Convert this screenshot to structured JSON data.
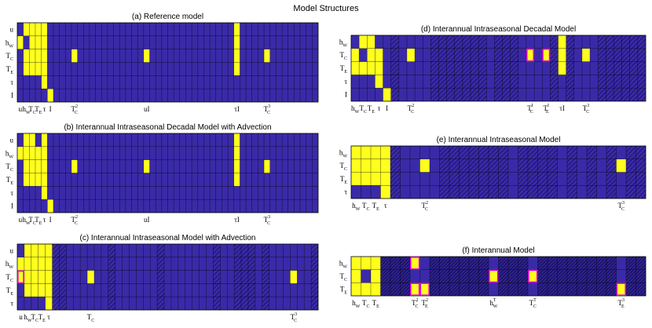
{
  "figure_title": "Model Structures",
  "colors": {
    "background_cell": "#3a2aa8",
    "active_cell": "#ffff1e",
    "grid_line": "#000000",
    "highlight_border": "#e000e0",
    "hatch": "#1a1060"
  },
  "chart_data": [
    {
      "type": "heatmap",
      "id": "a",
      "title": "(a) Reference model",
      "n_cols": 50,
      "rows": [
        {
          "label": "u",
          "sub": ""
        },
        {
          "label": "h",
          "sub": "W"
        },
        {
          "label": "T",
          "sub": "C"
        },
        {
          "label": "T",
          "sub": "E"
        },
        {
          "label": "τ",
          "sub": ""
        },
        {
          "label": "I",
          "sub": ""
        }
      ],
      "col_labels": [
        {
          "col": 0,
          "text": "u",
          "sub": "",
          "sup": ""
        },
        {
          "col": 1,
          "text": "h",
          "sub": "W",
          "sup": ""
        },
        {
          "col": 2,
          "text": "T",
          "sub": "C",
          "sup": ""
        },
        {
          "col": 3,
          "text": "T",
          "sub": "E",
          "sup": ""
        },
        {
          "col": 4,
          "text": "τ",
          "sub": "",
          "sup": ""
        },
        {
          "col": 5,
          "text": "I",
          "sub": "",
          "sup": ""
        },
        {
          "col": 9,
          "text": "T",
          "sub": "C",
          "sup": "2"
        },
        {
          "col": 21,
          "text": "uI",
          "sub": "",
          "sup": ""
        },
        {
          "col": 36,
          "text": "τI",
          "sub": "",
          "sup": ""
        },
        {
          "col": 41,
          "text": "T",
          "sub": "C",
          "sup": "3"
        }
      ],
      "active": [
        [
          1,
          0
        ],
        [
          2,
          0
        ],
        [
          3,
          0
        ],
        [
          4,
          0
        ],
        [
          0,
          1
        ],
        [
          2,
          1
        ],
        [
          3,
          1
        ],
        [
          4,
          1
        ],
        [
          1,
          2
        ],
        [
          2,
          2
        ],
        [
          3,
          2
        ],
        [
          4,
          2
        ],
        [
          1,
          3
        ],
        [
          2,
          3
        ],
        [
          3,
          3
        ],
        [
          4,
          3
        ],
        [
          4,
          4
        ],
        [
          5,
          5
        ],
        [
          9,
          2
        ],
        [
          21,
          2
        ],
        [
          36,
          0
        ],
        [
          36,
          1
        ],
        [
          36,
          2
        ],
        [
          36,
          3
        ],
        [
          41,
          2
        ]
      ],
      "highlight": [],
      "hatched": [],
      "hatched_dark": []
    },
    {
      "type": "heatmap",
      "id": "b",
      "title": "(b) Interannual Intraseasonal Decadal Model with Advection",
      "n_cols": 50,
      "rows": [
        {
          "label": "u",
          "sub": ""
        },
        {
          "label": "h",
          "sub": "W"
        },
        {
          "label": "T",
          "sub": "C"
        },
        {
          "label": "T",
          "sub": "E"
        },
        {
          "label": "τ",
          "sub": ""
        },
        {
          "label": "I",
          "sub": ""
        }
      ],
      "col_labels": [
        {
          "col": 0,
          "text": "u",
          "sub": "",
          "sup": ""
        },
        {
          "col": 1,
          "text": "h",
          "sub": "W",
          "sup": ""
        },
        {
          "col": 2,
          "text": "T",
          "sub": "C",
          "sup": ""
        },
        {
          "col": 3,
          "text": "T",
          "sub": "E",
          "sup": ""
        },
        {
          "col": 4,
          "text": "τ",
          "sub": "",
          "sup": ""
        },
        {
          "col": 5,
          "text": "I",
          "sub": "",
          "sup": ""
        },
        {
          "col": 9,
          "text": "T",
          "sub": "C",
          "sup": "2"
        },
        {
          "col": 21,
          "text": "uI",
          "sub": "",
          "sup": ""
        },
        {
          "col": 36,
          "text": "τI",
          "sub": "",
          "sup": ""
        },
        {
          "col": 41,
          "text": "T",
          "sub": "C",
          "sup": "3"
        }
      ],
      "active": [
        [
          1,
          0
        ],
        [
          2,
          0
        ],
        [
          4,
          0
        ],
        [
          0,
          1
        ],
        [
          1,
          1
        ],
        [
          2,
          1
        ],
        [
          3,
          1
        ],
        [
          4,
          1
        ],
        [
          1,
          2
        ],
        [
          2,
          2
        ],
        [
          3,
          2
        ],
        [
          4,
          2
        ],
        [
          1,
          3
        ],
        [
          2,
          3
        ],
        [
          3,
          3
        ],
        [
          4,
          3
        ],
        [
          4,
          4
        ],
        [
          5,
          5
        ],
        [
          9,
          2
        ],
        [
          21,
          2
        ],
        [
          36,
          0
        ],
        [
          36,
          1
        ],
        [
          36,
          2
        ],
        [
          36,
          3
        ],
        [
          41,
          2
        ]
      ],
      "highlight": [],
      "hatched": [],
      "hatched_dark": []
    },
    {
      "type": "heatmap",
      "id": "c",
      "title": "(c) Interannual Intraseasonal Model with Advection",
      "n_cols": 43,
      "rows": [
        {
          "label": "u",
          "sub": ""
        },
        {
          "label": "h",
          "sub": "W"
        },
        {
          "label": "T",
          "sub": "C"
        },
        {
          "label": "T",
          "sub": "E"
        },
        {
          "label": "τ",
          "sub": ""
        }
      ],
      "col_labels": [
        {
          "col": 0,
          "text": "u",
          "sub": "",
          "sup": ""
        },
        {
          "col": 1,
          "text": "h",
          "sub": "W",
          "sup": ""
        },
        {
          "col": 2,
          "text": "T",
          "sub": "C",
          "sup": ""
        },
        {
          "col": 3,
          "text": "T",
          "sub": "E",
          "sup": ""
        },
        {
          "col": 4,
          "text": "τ",
          "sub": "",
          "sup": ""
        },
        {
          "col": 10,
          "text": "T",
          "sub": "C",
          "sup": ""
        },
        {
          "col": 39,
          "text": "T",
          "sub": "C",
          "sup": "3"
        }
      ],
      "active": [
        [
          1,
          0
        ],
        [
          2,
          0
        ],
        [
          3,
          0
        ],
        [
          4,
          0
        ],
        [
          0,
          1
        ],
        [
          1,
          1
        ],
        [
          2,
          1
        ],
        [
          3,
          1
        ],
        [
          4,
          1
        ],
        [
          0,
          2
        ],
        [
          1,
          2
        ],
        [
          2,
          2
        ],
        [
          3,
          2
        ],
        [
          4,
          2
        ],
        [
          1,
          3
        ],
        [
          2,
          3
        ],
        [
          3,
          3
        ],
        [
          4,
          3
        ],
        [
          4,
          4
        ],
        [
          10,
          2
        ],
        [
          39,
          2
        ]
      ],
      "highlight": [
        [
          0,
          2
        ]
      ],
      "hatched": [
        5,
        6,
        13,
        20,
        28,
        31,
        32,
        33,
        35,
        42
      ],
      "hatched_dark": []
    },
    {
      "type": "heatmap",
      "id": "d",
      "title": "(d) Interannual Intraseasonal Decadal Model",
      "n_cols": 37,
      "rows": [
        {
          "label": "h",
          "sub": "W"
        },
        {
          "label": "T",
          "sub": "C"
        },
        {
          "label": "T",
          "sub": "E"
        },
        {
          "label": "τ",
          "sub": ""
        },
        {
          "label": "I",
          "sub": ""
        }
      ],
      "col_labels": [
        {
          "col": 0,
          "text": "h",
          "sub": "W",
          "sup": ""
        },
        {
          "col": 1,
          "text": "T",
          "sub": "C",
          "sup": ""
        },
        {
          "col": 2,
          "text": "T",
          "sub": "E",
          "sup": ""
        },
        {
          "col": 3,
          "text": "τ",
          "sub": "",
          "sup": ""
        },
        {
          "col": 4,
          "text": "I",
          "sub": "",
          "sup": ""
        },
        {
          "col": 7,
          "text": "T",
          "sub": "C",
          "sup": "2"
        },
        {
          "col": 22,
          "text": "T",
          "sub": "C",
          "sup": "I"
        },
        {
          "col": 24,
          "text": "T",
          "sub": "E",
          "sup": "I"
        },
        {
          "col": 26,
          "text": "τI",
          "sub": "",
          "sup": ""
        },
        {
          "col": 29,
          "text": "T",
          "sub": "C",
          "sup": "3"
        }
      ],
      "active": [
        [
          1,
          0
        ],
        [
          2,
          0
        ],
        [
          0,
          1
        ],
        [
          2,
          1
        ],
        [
          3,
          1
        ],
        [
          0,
          2
        ],
        [
          1,
          2
        ],
        [
          2,
          2
        ],
        [
          3,
          2
        ],
        [
          3,
          3
        ],
        [
          4,
          4
        ],
        [
          7,
          1
        ],
        [
          22,
          1
        ],
        [
          24,
          1
        ],
        [
          26,
          0
        ],
        [
          26,
          1
        ],
        [
          26,
          2
        ],
        [
          29,
          1
        ]
      ],
      "highlight": [
        [
          22,
          1
        ],
        [
          24,
          1
        ]
      ],
      "hatched": [
        5,
        10,
        11,
        12,
        13,
        14,
        15,
        16,
        18,
        19,
        20,
        25,
        27,
        31,
        32,
        33,
        34,
        35,
        36
      ],
      "hatched_dark": []
    },
    {
      "type": "heatmap",
      "id": "e",
      "title": "(e) Interannual Intraseasonal Model",
      "n_cols": 30,
      "rows": [
        {
          "label": "h",
          "sub": "W"
        },
        {
          "label": "T",
          "sub": "C"
        },
        {
          "label": "T",
          "sub": "E"
        },
        {
          "label": "τ",
          "sub": ""
        }
      ],
      "col_labels": [
        {
          "col": 0,
          "text": "h",
          "sub": "W",
          "sup": ""
        },
        {
          "col": 1,
          "text": "T",
          "sub": "C",
          "sup": ""
        },
        {
          "col": 2,
          "text": "T",
          "sub": "E",
          "sup": ""
        },
        {
          "col": 3,
          "text": "τ",
          "sub": "",
          "sup": ""
        },
        {
          "col": 7,
          "text": "T",
          "sub": "C",
          "sup": "2"
        },
        {
          "col": 27,
          "text": "T",
          "sub": "C",
          "sup": "3"
        }
      ],
      "active": [
        [
          0,
          0
        ],
        [
          1,
          0
        ],
        [
          2,
          0
        ],
        [
          3,
          0
        ],
        [
          0,
          1
        ],
        [
          1,
          1
        ],
        [
          2,
          1
        ],
        [
          3,
          1
        ],
        [
          0,
          2
        ],
        [
          1,
          2
        ],
        [
          2,
          2
        ],
        [
          3,
          2
        ],
        [
          3,
          3
        ],
        [
          7,
          1
        ],
        [
          27,
          1
        ]
      ],
      "highlight": [],
      "hatched": [
        4,
        9,
        10,
        11,
        12,
        13,
        14,
        15,
        17,
        18,
        19,
        20,
        22,
        24,
        26,
        28,
        29
      ],
      "hatched_dark": []
    },
    {
      "type": "heatmap",
      "id": "f",
      "title": "(f) Interannual Model",
      "n_cols": 30,
      "rows": [
        {
          "label": "h",
          "sub": "W"
        },
        {
          "label": "T",
          "sub": "C"
        },
        {
          "label": "T",
          "sub": "E"
        }
      ],
      "col_labels": [
        {
          "col": 0,
          "text": "h",
          "sub": "W",
          "sup": ""
        },
        {
          "col": 1,
          "text": "T",
          "sub": "C",
          "sup": ""
        },
        {
          "col": 2,
          "text": "T",
          "sub": "E",
          "sup": ""
        },
        {
          "col": 6,
          "text": "T",
          "sub": "C",
          "sup": "2"
        },
        {
          "col": 7,
          "text": "T",
          "sub": "E",
          "sup": "2"
        },
        {
          "col": 14,
          "text": "h",
          "sub": "W",
          "sup": "T"
        },
        {
          "col": 18,
          "text": "T",
          "sub": "C",
          "sup": "T"
        },
        {
          "col": 27,
          "text": "T",
          "sub": "E",
          "sup": "3"
        }
      ],
      "active": [
        [
          0,
          0
        ],
        [
          1,
          0
        ],
        [
          2,
          0
        ],
        [
          0,
          1
        ],
        [
          2,
          1
        ],
        [
          0,
          2
        ],
        [
          1,
          2
        ],
        [
          2,
          2
        ],
        [
          6,
          0
        ],
        [
          6,
          2
        ],
        [
          7,
          2
        ],
        [
          14,
          1
        ],
        [
          18,
          1
        ],
        [
          27,
          2
        ]
      ],
      "highlight": [
        [
          6,
          0
        ],
        [
          6,
          2
        ],
        [
          7,
          2
        ],
        [
          14,
          1
        ],
        [
          18,
          1
        ],
        [
          27,
          2
        ]
      ],
      "hatched": [],
      "hatched_dark": [
        3,
        4,
        5,
        8,
        9,
        10,
        11,
        12,
        13,
        15,
        16,
        17,
        19,
        20,
        21,
        22,
        23,
        24,
        25,
        26,
        28,
        29
      ]
    }
  ]
}
